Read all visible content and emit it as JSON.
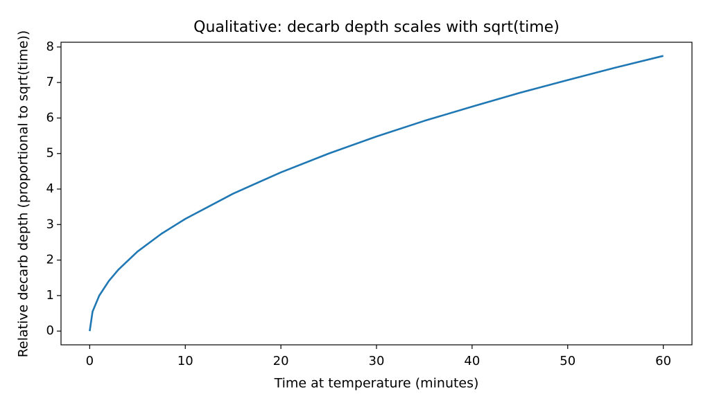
{
  "chart_data": {
    "type": "line",
    "title": "Qualitative: decarb depth scales with sqrt(time)",
    "x_label": "Time at temperature (minutes)",
    "y_label": "Relative decarb depth (proportional to sqrt(time))",
    "x": [
      0,
      0.3,
      1,
      2,
      3,
      5,
      7.5,
      10,
      15,
      20,
      25,
      30,
      35,
      40,
      45,
      50,
      55,
      60
    ],
    "series": [
      {
        "name": "sqrt(time)",
        "color": "#1f77b4",
        "values": [
          0,
          0.55,
          1,
          1.41,
          1.73,
          2.24,
          2.74,
          3.16,
          3.87,
          4.47,
          5,
          5.48,
          5.92,
          6.32,
          6.71,
          7.07,
          7.42,
          7.75
        ]
      }
    ],
    "xlim": [
      -3,
      63
    ],
    "ylim": [
      -0.387,
      8.134
    ],
    "xticks": [
      0,
      10,
      20,
      30,
      40,
      50,
      60
    ],
    "yticks": [
      0,
      1,
      2,
      3,
      4,
      5,
      6,
      7,
      8
    ],
    "grid": false
  }
}
